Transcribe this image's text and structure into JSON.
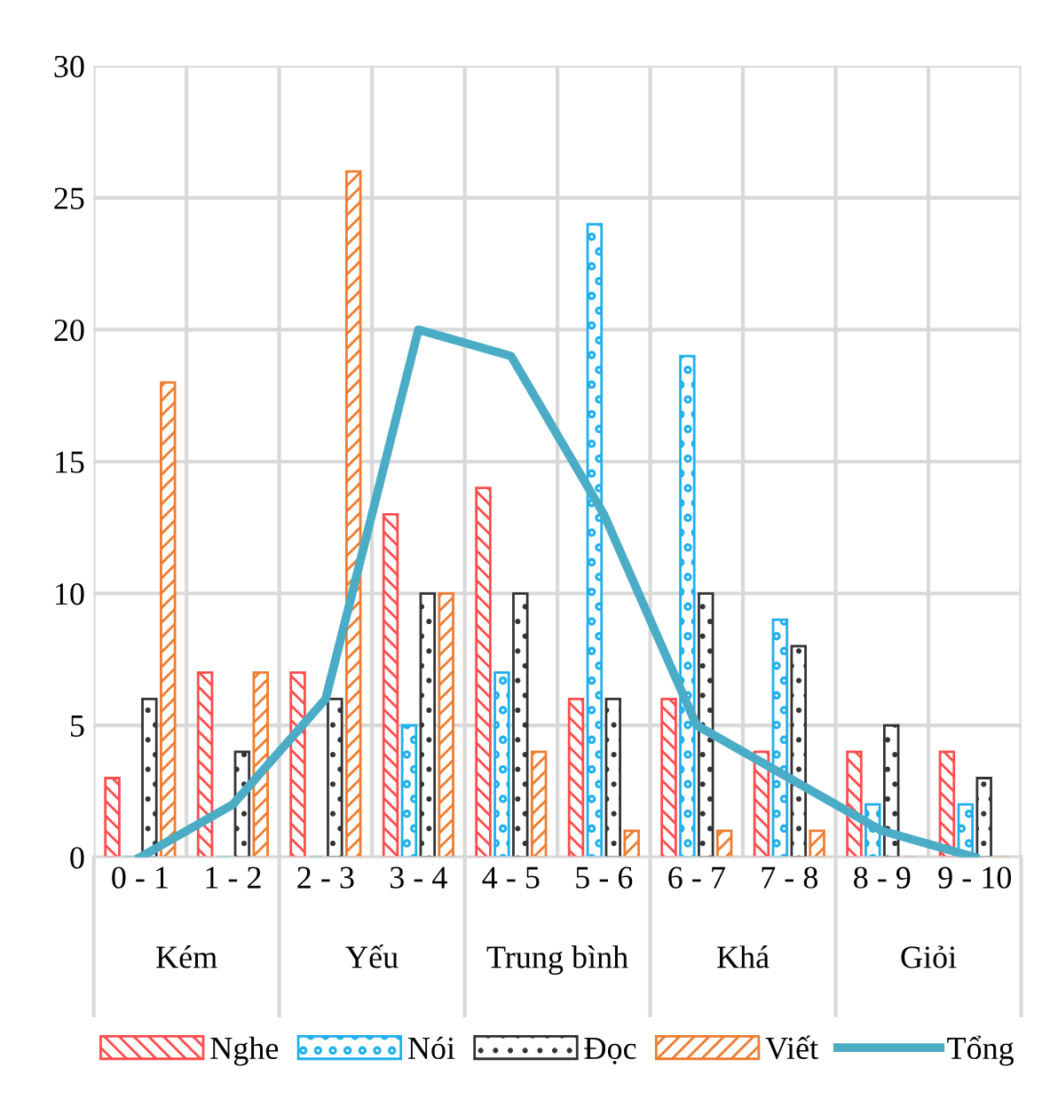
{
  "chart_data": {
    "type": "bar",
    "categories": [
      "0 - 1",
      "1 - 2",
      "2 - 3",
      "3 - 4",
      "4 - 5",
      "5 - 6",
      "6 - 7",
      "7 - 8",
      "8 - 9",
      "9 - 10"
    ],
    "series": [
      {
        "name": "Nghe",
        "color": "#ff4d4d",
        "values": [
          3,
          7,
          7,
          13,
          14,
          6,
          6,
          4,
          4,
          4
        ]
      },
      {
        "name": "Nói",
        "color": "#1fb0ec",
        "values": [
          0,
          0,
          0,
          5,
          7,
          24,
          19,
          9,
          2,
          2
        ]
      },
      {
        "name": "Đọc",
        "color": "#333333",
        "values": [
          6,
          4,
          6,
          10,
          10,
          6,
          10,
          8,
          5,
          3
        ]
      },
      {
        "name": "Viết",
        "color": "#ed7d31",
        "values": [
          18,
          7,
          26,
          10,
          4,
          1,
          1,
          1,
          0,
          0
        ]
      },
      {
        "name": "Tổng",
        "type": "line",
        "color": "#4bacc6",
        "values": [
          0,
          2,
          6,
          20,
          19,
          13,
          5,
          3,
          1,
          0
        ]
      }
    ],
    "ylim": [
      0,
      30
    ],
    "yticks": [
      0,
      5,
      10,
      15,
      20,
      25,
      30
    ],
    "grid": true,
    "legend": "bottom",
    "marker": "none",
    "line_style": "solid",
    "annotations": [
      "Kém",
      "Yếu",
      "Trung bình",
      "Khá",
      "Giỏi"
    ]
  }
}
